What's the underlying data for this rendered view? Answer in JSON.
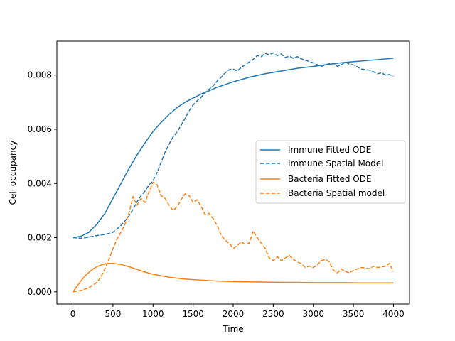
{
  "chart_data": {
    "type": "line",
    "title": "",
    "xlabel": "Time",
    "ylabel": "Cell occupancy",
    "xlim": [
      -200,
      4200
    ],
    "ylim": [
      -0.00045,
      0.00925
    ],
    "xticks": [
      0,
      500,
      1000,
      1500,
      2000,
      2500,
      3000,
      3500,
      4000
    ],
    "xtick_labels": [
      "0",
      "500",
      "1000",
      "1500",
      "2000",
      "2500",
      "3000",
      "3500",
      "4000"
    ],
    "yticks": [
      0,
      0.002,
      0.004,
      0.006,
      0.008
    ],
    "ytick_labels": [
      "0.000",
      "0.002",
      "0.004",
      "0.006",
      "0.008"
    ],
    "grid": false,
    "legend_position": "center-right",
    "series": [
      {
        "name": "Immune Fitted ODE",
        "color": "#1f77b4",
        "style": "solid",
        "x": [
          0,
          100,
          200,
          300,
          400,
          500,
          600,
          700,
          800,
          900,
          1000,
          1100,
          1200,
          1300,
          1400,
          1500,
          1600,
          1700,
          1800,
          1900,
          2000,
          2200,
          2400,
          2600,
          2800,
          3000,
          3200,
          3400,
          3600,
          3800,
          4000
        ],
        "y": [
          0.002,
          0.00205,
          0.0022,
          0.0025,
          0.0029,
          0.00345,
          0.004,
          0.00455,
          0.00505,
          0.0055,
          0.00592,
          0.00625,
          0.00655,
          0.0068,
          0.007,
          0.00715,
          0.0073,
          0.00742,
          0.00755,
          0.00765,
          0.00775,
          0.00792,
          0.00805,
          0.00815,
          0.00825,
          0.00832,
          0.0084,
          0.00847,
          0.00852,
          0.00857,
          0.00862
        ]
      },
      {
        "name": "Immune Spatial Model",
        "color": "#1f77b4",
        "style": "dashed",
        "x": [
          0,
          100,
          200,
          300,
          400,
          500,
          550,
          600,
          650,
          700,
          750,
          800,
          850,
          900,
          950,
          1000,
          1050,
          1100,
          1150,
          1200,
          1250,
          1300,
          1350,
          1400,
          1450,
          1500,
          1550,
          1600,
          1650,
          1700,
          1750,
          1800,
          1850,
          1900,
          1950,
          2000,
          2050,
          2100,
          2150,
          2200,
          2250,
          2300,
          2350,
          2400,
          2450,
          2500,
          2550,
          2600,
          2650,
          2700,
          2750,
          2800,
          2850,
          2900,
          2950,
          3000,
          3050,
          3100,
          3150,
          3200,
          3250,
          3300,
          3350,
          3400,
          3450,
          3500,
          3550,
          3600,
          3650,
          3700,
          3750,
          3800,
          3850,
          3900,
          3950,
          4000
        ],
        "y": [
          0.002,
          0.00198,
          0.00202,
          0.00208,
          0.00212,
          0.0022,
          0.00232,
          0.00245,
          0.00262,
          0.0028,
          0.00305,
          0.00332,
          0.00355,
          0.00372,
          0.00395,
          0.0041,
          0.0044,
          0.00478,
          0.00515,
          0.00545,
          0.00572,
          0.0059,
          0.00615,
          0.0064,
          0.00668,
          0.0069,
          0.00705,
          0.00718,
          0.00735,
          0.00748,
          0.0076,
          0.00778,
          0.00792,
          0.00808,
          0.0082,
          0.00822,
          0.00815,
          0.00828,
          0.00838,
          0.00848,
          0.00858,
          0.00872,
          0.00868,
          0.0088,
          0.00875,
          0.00882,
          0.00872,
          0.00878,
          0.00865,
          0.0087,
          0.00862,
          0.00868,
          0.0086,
          0.00855,
          0.0085,
          0.00845,
          0.00838,
          0.00832,
          0.00838,
          0.00842,
          0.00845,
          0.00832,
          0.00838,
          0.00848,
          0.0084,
          0.00838,
          0.0083,
          0.00822,
          0.0082,
          0.00818,
          0.00812,
          0.00805,
          0.00808,
          0.008,
          0.00802,
          0.00795
        ]
      },
      {
        "name": "Bacteria Fitted ODE",
        "color": "#ff7f0e",
        "style": "solid",
        "x": [
          0,
          50,
          100,
          150,
          200,
          250,
          300,
          350,
          400,
          450,
          500,
          600,
          700,
          800,
          900,
          1000,
          1200,
          1400,
          1600,
          1800,
          2000,
          2200,
          2400,
          2600,
          2800,
          3000,
          3200,
          3400,
          3600,
          3800,
          4000
        ],
        "y": [
          0.0,
          0.0002,
          0.0004,
          0.00058,
          0.00072,
          0.00084,
          0.00093,
          0.00099,
          0.00103,
          0.00105,
          0.00105,
          0.00101,
          0.00093,
          0.00083,
          0.00073,
          0.00065,
          0.00054,
          0.00047,
          0.00043,
          0.0004,
          0.00038,
          0.00037,
          0.00036,
          0.00035,
          0.00035,
          0.00034,
          0.00034,
          0.00034,
          0.00033,
          0.00033,
          0.00033
        ]
      },
      {
        "name": "Bacteria Spatial model",
        "color": "#ff7f0e",
        "style": "dashed",
        "x": [
          0,
          100,
          200,
          300,
          350,
          400,
          450,
          500,
          550,
          600,
          650,
          700,
          750,
          800,
          850,
          900,
          950,
          1000,
          1050,
          1100,
          1150,
          1200,
          1250,
          1300,
          1350,
          1400,
          1450,
          1500,
          1550,
          1600,
          1650,
          1700,
          1750,
          1800,
          1850,
          1900,
          1950,
          2000,
          2050,
          2100,
          2150,
          2200,
          2250,
          2300,
          2350,
          2400,
          2450,
          2500,
          2550,
          2600,
          2650,
          2700,
          2750,
          2800,
          2850,
          2900,
          2950,
          3000,
          3050,
          3100,
          3150,
          3200,
          3250,
          3300,
          3350,
          3400,
          3450,
          3500,
          3550,
          3600,
          3650,
          3700,
          3750,
          3800,
          3850,
          3900,
          3950,
          4000
        ],
        "y": [
          0.0,
          5e-05,
          0.00015,
          0.00035,
          0.00055,
          0.00085,
          0.0012,
          0.0016,
          0.00195,
          0.0022,
          0.0025,
          0.0029,
          0.00352,
          0.0032,
          0.00345,
          0.0033,
          0.0037,
          0.00405,
          0.00395,
          0.00355,
          0.00345,
          0.0032,
          0.003,
          0.00315,
          0.0034,
          0.00362,
          0.00355,
          0.0033,
          0.0034,
          0.00315,
          0.00285,
          0.0029,
          0.0027,
          0.00245,
          0.0021,
          0.0019,
          0.0018,
          0.0016,
          0.0017,
          0.00185,
          0.00175,
          0.0018,
          0.00225,
          0.002,
          0.0018,
          0.0016,
          0.00125,
          0.00115,
          0.0013,
          0.00115,
          0.00125,
          0.00135,
          0.0012,
          0.0011,
          0.00105,
          0.0009,
          0.00095,
          0.0009,
          0.001,
          0.00115,
          0.0012,
          0.0011,
          0.0008,
          0.0007,
          0.00085,
          0.00075,
          0.0007,
          0.0008,
          0.00085,
          0.0009,
          0.00088,
          0.00085,
          0.00095,
          0.0009,
          0.00092,
          0.00095,
          0.00105,
          0.00075
        ]
      }
    ]
  }
}
